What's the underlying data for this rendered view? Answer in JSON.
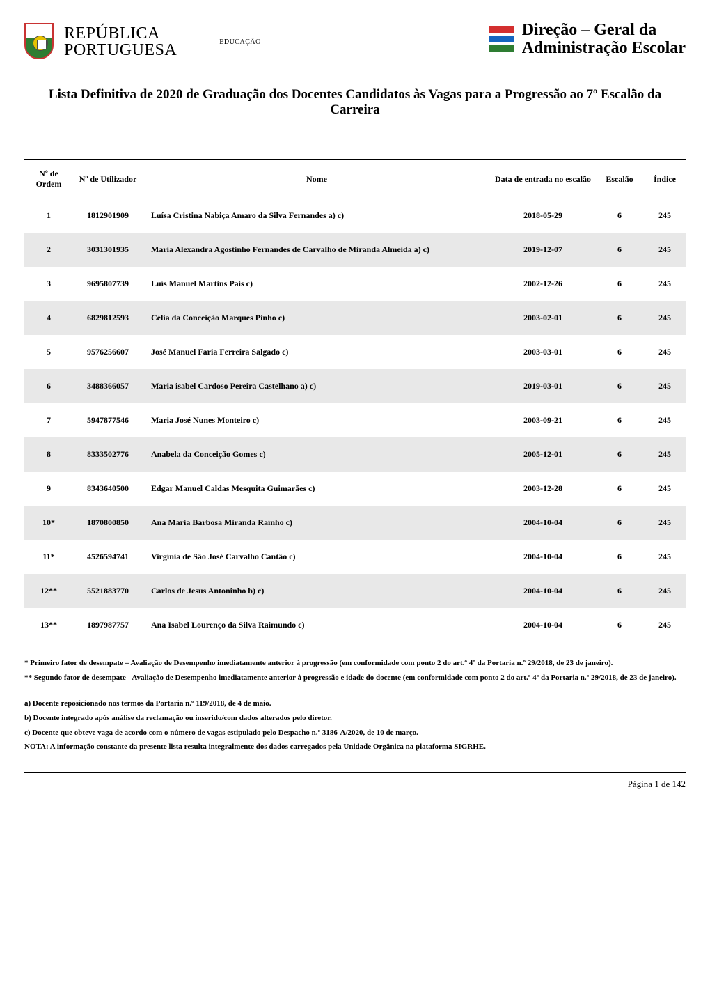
{
  "header": {
    "left": {
      "republica": "REPÚBLICA",
      "portuguesa": "PORTUGUESA",
      "educacao": "EDUCAÇÃO"
    },
    "right": {
      "line1": "Direção – Geral da",
      "line2": "Administração Escolar"
    },
    "flag_colors": {
      "red": "#d32f2f",
      "blue": "#1565c0",
      "green": "#2e7d32"
    }
  },
  "title": "Lista Definitiva de 2020 de Graduação dos Docentes Candidatos às Vagas para a Progressão ao 7º Escalão da Carreira",
  "table": {
    "columns": {
      "ordem": "Nº de Ordem",
      "utilizador": "Nº de Utilizador",
      "nome": "Nome",
      "data": "Data de entrada no escalão",
      "escalao": "Escalão",
      "indice": "Índice"
    },
    "rows": [
      {
        "ordem": "1",
        "util": "1812901909",
        "nome": "Luísa Cristina Nabiça Amaro da Silva Fernandes a) c)",
        "data": "2018-05-29",
        "escalao": "6",
        "indice": "245",
        "shaded": false
      },
      {
        "ordem": "2",
        "util": "3031301935",
        "nome": "Maria Alexandra Agostinho Fernandes de Carvalho de Miranda Almeida a) c)",
        "data": "2019-12-07",
        "escalao": "6",
        "indice": "245",
        "shaded": true
      },
      {
        "ordem": "3",
        "util": "9695807739",
        "nome": "Luís Manuel Martins Pais c)",
        "data": "2002-12-26",
        "escalao": "6",
        "indice": "245",
        "shaded": false
      },
      {
        "ordem": "4",
        "util": "6829812593",
        "nome": "Célia da Conceição Marques Pinho c)",
        "data": "2003-02-01",
        "escalao": "6",
        "indice": "245",
        "shaded": true
      },
      {
        "ordem": "5",
        "util": "9576256607",
        "nome": "José Manuel Faria Ferreira Salgado c)",
        "data": "2003-03-01",
        "escalao": "6",
        "indice": "245",
        "shaded": false
      },
      {
        "ordem": "6",
        "util": "3488366057",
        "nome": "Maria isabel Cardoso Pereira Castelhano a) c)",
        "data": "2019-03-01",
        "escalao": "6",
        "indice": "245",
        "shaded": true
      },
      {
        "ordem": "7",
        "util": "5947877546",
        "nome": "Maria José Nunes Monteiro c)",
        "data": "2003-09-21",
        "escalao": "6",
        "indice": "245",
        "shaded": false
      },
      {
        "ordem": "8",
        "util": "8333502776",
        "nome": "Anabela da Conceição Gomes c)",
        "data": "2005-12-01",
        "escalao": "6",
        "indice": "245",
        "shaded": true
      },
      {
        "ordem": "9",
        "util": "8343640500",
        "nome": "Edgar Manuel Caldas Mesquita Guimarães c)",
        "data": "2003-12-28",
        "escalao": "6",
        "indice": "245",
        "shaded": false
      },
      {
        "ordem": "10*",
        "util": "1870800850",
        "nome": "Ana Maria Barbosa Miranda Raínho c)",
        "data": "2004-10-04",
        "escalao": "6",
        "indice": "245",
        "shaded": true
      },
      {
        "ordem": "11*",
        "util": "4526594741",
        "nome": "Virgínia de São José Carvalho Cantão c)",
        "data": "2004-10-04",
        "escalao": "6",
        "indice": "245",
        "shaded": false
      },
      {
        "ordem": "12**",
        "util": "5521883770",
        "nome": "Carlos de Jesus Antoninho b) c)",
        "data": "2004-10-04",
        "escalao": "6",
        "indice": "245",
        "shaded": true
      },
      {
        "ordem": "13**",
        "util": "1897987757",
        "nome": "Ana Isabel Lourenço da Silva Raimundo c)",
        "data": "2004-10-04",
        "escalao": "6",
        "indice": "245",
        "shaded": false
      }
    ]
  },
  "footnotes": {
    "f1": "* Primeiro fator de desempate – Avaliação de Desempenho imediatamente anterior à progressão (em conformidade com ponto 2 do art.º 4º da Portaria n.º 29/2018, de 23 de janeiro).",
    "f2": "** Segundo fator de desempate - Avaliação de Desempenho imediatamente anterior à progressão e idade do docente (em conformidade com ponto 2 do art.º 4º da Portaria n.º 29/2018, de 23 de janeiro)."
  },
  "notes": {
    "a": "a) Docente reposicionado nos termos da Portaria n.º 119/2018, de 4 de maio.",
    "b": "b) Docente integrado após análise da reclamação ou inserido/com dados alterados pelo diretor.",
    "c": "c) Docente que obteve vaga de acordo com o número de vagas estipulado pelo Despacho n.º 3186-A/2020, de 10 de março.",
    "nota": "NOTA: A informação constante da presente lista resulta integralmente dos dados carregados pela Unidade Orgânica na plataforma SIGRHE."
  },
  "footer": {
    "pagina_label": "Página",
    "page_current": "1",
    "de_label": "de",
    "page_total": "142"
  }
}
